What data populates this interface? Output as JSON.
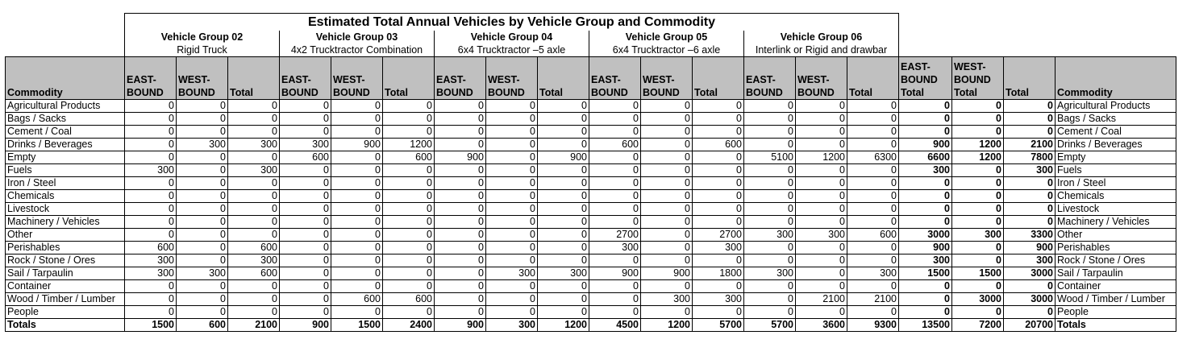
{
  "title": "Estimated Total Annual Vehicles by Vehicle Group and Commodity",
  "groups": [
    {
      "name": "Vehicle Group 02",
      "desc": "Rigid Truck"
    },
    {
      "name": "Vehicle Group 03",
      "desc": "4x2 Trucktractor Combination"
    },
    {
      "name": "Vehicle Group 04",
      "desc": "6x4 Trucktractor –5 axle"
    },
    {
      "name": "Vehicle Group 05",
      "desc": "6x4 Trucktractor –6 axle"
    },
    {
      "name": "Vehicle Group 06",
      "desc": "Interlink or Rigid and drawbar"
    }
  ],
  "headers": {
    "commodity": "Commodity",
    "eastbound": "EAST-BOUND",
    "westbound": "WEST-BOUND",
    "total": "Total",
    "eastbound_total": "EAST-BOUND Total",
    "westbound_total": "WEST-BOUND Total",
    "grand_total": "Total",
    "commodity_right": "Commodity"
  },
  "rows": [
    {
      "commodity": "Agricultural Products",
      "values": [
        0,
        0,
        0,
        0,
        0,
        0,
        0,
        0,
        0,
        0,
        0,
        0,
        0,
        0,
        0
      ],
      "totals": [
        0,
        0,
        0
      ]
    },
    {
      "commodity": "Bags / Sacks",
      "values": [
        0,
        0,
        0,
        0,
        0,
        0,
        0,
        0,
        0,
        0,
        0,
        0,
        0,
        0,
        0
      ],
      "totals": [
        0,
        0,
        0
      ]
    },
    {
      "commodity": "Cement / Coal",
      "values": [
        0,
        0,
        0,
        0,
        0,
        0,
        0,
        0,
        0,
        0,
        0,
        0,
        0,
        0,
        0
      ],
      "totals": [
        0,
        0,
        0
      ]
    },
    {
      "commodity": "Drinks / Beverages",
      "values": [
        0,
        300,
        300,
        300,
        900,
        1200,
        0,
        0,
        0,
        600,
        0,
        600,
        0,
        0,
        0
      ],
      "totals": [
        900,
        1200,
        2100
      ]
    },
    {
      "commodity": "Empty",
      "values": [
        0,
        0,
        0,
        600,
        0,
        600,
        900,
        0,
        900,
        0,
        0,
        0,
        5100,
        1200,
        6300
      ],
      "totals": [
        6600,
        1200,
        7800
      ]
    },
    {
      "commodity": "Fuels",
      "values": [
        300,
        0,
        300,
        0,
        0,
        0,
        0,
        0,
        0,
        0,
        0,
        0,
        0,
        0,
        0
      ],
      "totals": [
        300,
        0,
        300
      ]
    },
    {
      "commodity": "Iron / Steel",
      "values": [
        0,
        0,
        0,
        0,
        0,
        0,
        0,
        0,
        0,
        0,
        0,
        0,
        0,
        0,
        0
      ],
      "totals": [
        0,
        0,
        0
      ]
    },
    {
      "commodity": "Chemicals",
      "values": [
        0,
        0,
        0,
        0,
        0,
        0,
        0,
        0,
        0,
        0,
        0,
        0,
        0,
        0,
        0
      ],
      "totals": [
        0,
        0,
        0
      ]
    },
    {
      "commodity": "Livestock",
      "values": [
        0,
        0,
        0,
        0,
        0,
        0,
        0,
        0,
        0,
        0,
        0,
        0,
        0,
        0,
        0
      ],
      "totals": [
        0,
        0,
        0
      ]
    },
    {
      "commodity": "Machinery / Vehicles",
      "values": [
        0,
        0,
        0,
        0,
        0,
        0,
        0,
        0,
        0,
        0,
        0,
        0,
        0,
        0,
        0
      ],
      "totals": [
        0,
        0,
        0
      ]
    },
    {
      "commodity": "Other",
      "values": [
        0,
        0,
        0,
        0,
        0,
        0,
        0,
        0,
        0,
        2700,
        0,
        2700,
        300,
        300,
        600
      ],
      "totals": [
        3000,
        300,
        3300
      ]
    },
    {
      "commodity": "Perishables",
      "values": [
        600,
        0,
        600,
        0,
        0,
        0,
        0,
        0,
        0,
        300,
        0,
        300,
        0,
        0,
        0
      ],
      "totals": [
        900,
        0,
        900
      ]
    },
    {
      "commodity": "Rock / Stone / Ores",
      "values": [
        300,
        0,
        300,
        0,
        0,
        0,
        0,
        0,
        0,
        0,
        0,
        0,
        0,
        0,
        0
      ],
      "totals": [
        300,
        0,
        300
      ]
    },
    {
      "commodity": "Sail / Tarpaulin",
      "values": [
        300,
        300,
        600,
        0,
        0,
        0,
        0,
        300,
        300,
        900,
        900,
        1800,
        300,
        0,
        300
      ],
      "totals": [
        1500,
        1500,
        3000
      ]
    },
    {
      "commodity": "Container",
      "values": [
        0,
        0,
        0,
        0,
        0,
        0,
        0,
        0,
        0,
        0,
        0,
        0,
        0,
        0,
        0
      ],
      "totals": [
        0,
        0,
        0
      ]
    },
    {
      "commodity": "Wood / Timber / Lumber",
      "values": [
        0,
        0,
        0,
        0,
        600,
        600,
        0,
        0,
        0,
        0,
        300,
        300,
        0,
        2100,
        2100
      ],
      "totals": [
        0,
        3000,
        3000
      ]
    },
    {
      "commodity": "People",
      "values": [
        0,
        0,
        0,
        0,
        0,
        0,
        0,
        0,
        0,
        0,
        0,
        0,
        0,
        0,
        0
      ],
      "totals": [
        0,
        0,
        0
      ]
    }
  ],
  "totals_row": {
    "label": "Totals",
    "values": [
      1500,
      600,
      2100,
      900,
      1500,
      2400,
      900,
      300,
      1200,
      4500,
      1200,
      5700,
      5700,
      3600,
      9300
    ],
    "totals": [
      13500,
      7200,
      20700
    ]
  }
}
